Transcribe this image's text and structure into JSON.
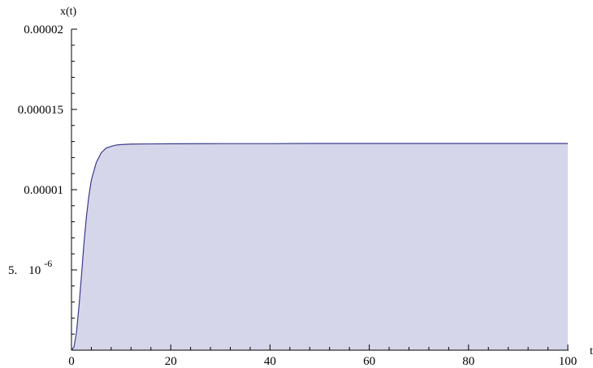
{
  "chart_data": {
    "type": "area",
    "title": "",
    "xlabel": "t",
    "ylabel": "x(t)",
    "xlim": [
      0,
      100
    ],
    "ylim": [
      0,
      2e-05
    ],
    "grid": false,
    "legend": "none",
    "x_ticks": [
      {
        "value": 0,
        "label": "0"
      },
      {
        "value": 20,
        "label": "20"
      },
      {
        "value": 40,
        "label": "40"
      },
      {
        "value": 60,
        "label": "60"
      },
      {
        "value": 80,
        "label": "80"
      },
      {
        "value": 100,
        "label": "100"
      }
    ],
    "y_ticks": [
      {
        "value": 5e-06,
        "label": "5.",
        "exponent_label": "10",
        "exponent": "-6"
      },
      {
        "value": 1e-05,
        "label": "0.00001"
      },
      {
        "value": 1.5e-05,
        "label": "0.000015"
      },
      {
        "value": 2e-05,
        "label": "0.00002"
      }
    ],
    "series": [
      {
        "x": [
          0,
          0.5,
          1,
          1.5,
          2,
          2.5,
          3,
          3.5,
          4,
          5,
          6,
          7,
          8,
          9,
          10,
          12,
          15,
          20,
          30,
          40,
          50,
          60,
          70,
          80,
          90,
          100
        ],
        "y": [
          0,
          2e-07,
          1.1e-06,
          2.7e-06,
          4.6e-06,
          6.6e-06,
          8.3e-06,
          9.6e-06,
          1.06e-05,
          1.17e-05,
          1.23e-05,
          1.26e-05,
          1.27e-05,
          1.278e-05,
          1.281e-05,
          1.284e-05,
          1.285e-05,
          1.286e-05,
          1.287e-05,
          1.287e-05,
          1.288e-05,
          1.288e-05,
          1.288e-05,
          1.288e-05,
          1.288e-05,
          1.288e-05
        ]
      }
    ],
    "colors": {
      "line": "#3a3a8c",
      "fill": "#d6d6ea",
      "axis": "#000000"
    }
  }
}
